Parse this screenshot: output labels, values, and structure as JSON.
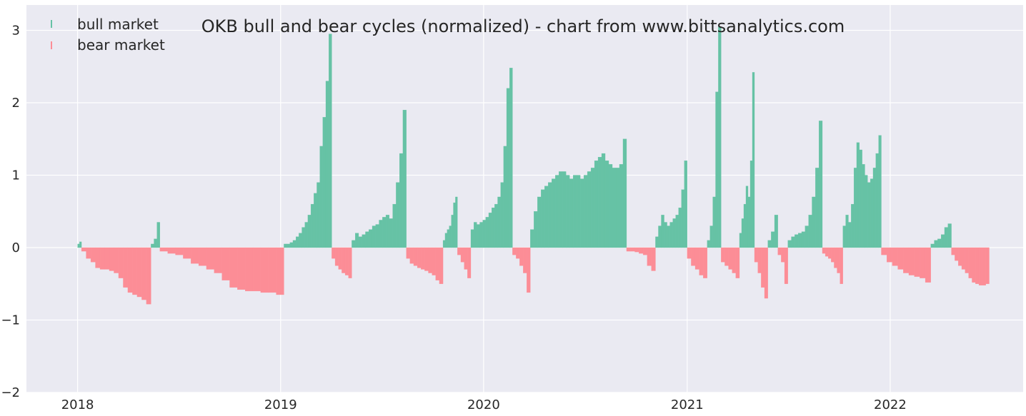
{
  "chart_data": {
    "type": "bar",
    "title": "OKB bull and bear cycles (normalized)  - chart from www.bittsanalytics.com",
    "xlabel": "",
    "ylabel": "",
    "xlim": [
      "2017-10-01",
      "2022-08-28"
    ],
    "ylim": [
      -2,
      3.35
    ],
    "x_ticks": [
      "2018",
      "2019",
      "2020",
      "2021",
      "2022"
    ],
    "y_ticks": [
      "−2",
      "−1",
      "0",
      "1",
      "2",
      "3"
    ],
    "grid": true,
    "legend_position": "top-left",
    "colors": {
      "background": "#EAEAF2",
      "grid": "#FFFFFF",
      "bull": "#66C2A5",
      "bear": "#FC8D96",
      "text": "#262626"
    },
    "series": [
      {
        "name": "bull market",
        "color": "#66C2A5"
      },
      {
        "name": "bear market",
        "color": "#FC8D96"
      }
    ],
    "cycles": [
      {
        "market": "bull",
        "start": "2018-01-01",
        "end": "2018-01-07",
        "values": [
          0.05,
          0.08
        ]
      },
      {
        "market": "bear",
        "start": "2018-01-08",
        "end": "2018-05-12",
        "values": [
          -0.05,
          -0.15,
          -0.2,
          -0.28,
          -0.3,
          -0.3,
          -0.32,
          -0.35,
          -0.42,
          -0.55,
          -0.62,
          -0.65,
          -0.68,
          -0.72,
          -0.78
        ]
      },
      {
        "market": "bull",
        "start": "2018-05-13",
        "end": "2018-05-28",
        "values": [
          0.05,
          0.12,
          0.35
        ]
      },
      {
        "market": "bear",
        "start": "2018-05-29",
        "end": "2019-01-06",
        "values": [
          -0.05,
          -0.08,
          -0.1,
          -0.15,
          -0.22,
          -0.25,
          -0.3,
          -0.35,
          -0.45,
          -0.55,
          -0.58,
          -0.6,
          -0.6,
          -0.62,
          -0.62,
          -0.65
        ]
      },
      {
        "market": "bull",
        "start": "2019-01-07",
        "end": "2019-04-02",
        "values": [
          0.05,
          0.05,
          0.07,
          0.1,
          0.15,
          0.2,
          0.28,
          0.35,
          0.45,
          0.6,
          0.75,
          0.9,
          1.4,
          1.8,
          2.3,
          2.95
        ]
      },
      {
        "market": "bear",
        "start": "2019-04-03",
        "end": "2019-05-08",
        "values": [
          -0.15,
          -0.25,
          -0.3,
          -0.35,
          -0.38,
          -0.42
        ]
      },
      {
        "market": "bull",
        "start": "2019-05-09",
        "end": "2019-08-14",
        "values": [
          0.1,
          0.2,
          0.15,
          0.18,
          0.22,
          0.25,
          0.3,
          0.32,
          0.38,
          0.42,
          0.45,
          0.4,
          0.6,
          0.9,
          1.3,
          1.9
        ]
      },
      {
        "market": "bear",
        "start": "2019-08-15",
        "end": "2019-10-19",
        "values": [
          -0.15,
          -0.22,
          -0.25,
          -0.28,
          -0.3,
          -0.32,
          -0.35,
          -0.38,
          -0.45,
          -0.5
        ]
      },
      {
        "market": "bull",
        "start": "2019-10-20",
        "end": "2019-11-14",
        "values": [
          0.1,
          0.2,
          0.25,
          0.3,
          0.45,
          0.62,
          0.7
        ]
      },
      {
        "market": "bear",
        "start": "2019-11-15",
        "end": "2019-12-08",
        "values": [
          -0.1,
          -0.2,
          -0.3,
          -0.42
        ]
      },
      {
        "market": "bull",
        "start": "2019-12-09",
        "end": "2020-02-21",
        "values": [
          0.25,
          0.35,
          0.32,
          0.35,
          0.38,
          0.42,
          0.48,
          0.55,
          0.6,
          0.7,
          0.9,
          1.4,
          2.2,
          2.48
        ]
      },
      {
        "market": "bear",
        "start": "2020-02-22",
        "end": "2020-03-24",
        "values": [
          -0.1,
          -0.15,
          -0.25,
          -0.35,
          -0.62
        ]
      },
      {
        "market": "bull",
        "start": "2020-03-25",
        "end": "2020-09-13",
        "values": [
          0.25,
          0.5,
          0.7,
          0.8,
          0.85,
          0.9,
          0.95,
          1.0,
          1.05,
          1.05,
          1.0,
          0.95,
          1.0,
          1.0,
          0.95,
          1.0,
          1.05,
          1.1,
          1.2,
          1.25,
          1.3,
          1.2,
          1.15,
          1.1,
          1.1,
          1.15,
          1.5
        ]
      },
      {
        "market": "bear",
        "start": "2020-09-14",
        "end": "2020-11-04",
        "values": [
          -0.05,
          -0.05,
          -0.06,
          -0.08,
          -0.1,
          -0.25,
          -0.32
        ]
      },
      {
        "market": "bull",
        "start": "2020-11-05",
        "end": "2020-12-31",
        "values": [
          0.15,
          0.3,
          0.45,
          0.35,
          0.3,
          0.35,
          0.4,
          0.45,
          0.55,
          0.8,
          1.2
        ]
      },
      {
        "market": "bear",
        "start": "2021-01-01",
        "end": "2021-02-05",
        "values": [
          -0.15,
          -0.25,
          -0.3,
          -0.38,
          -0.42
        ]
      },
      {
        "market": "bull",
        "start": "2021-02-06",
        "end": "2021-03-02",
        "values": [
          0.1,
          0.3,
          0.7,
          2.15,
          3.05
        ]
      },
      {
        "market": "bear",
        "start": "2021-03-03",
        "end": "2021-04-04",
        "values": [
          -0.2,
          -0.25,
          -0.3,
          -0.35,
          -0.42
        ]
      },
      {
        "market": "bull",
        "start": "2021-04-05",
        "end": "2021-05-01",
        "values": [
          0.2,
          0.4,
          0.6,
          0.85,
          0.7,
          1.2,
          2.42
        ]
      },
      {
        "market": "bear",
        "start": "2021-05-02",
        "end": "2021-05-25",
        "values": [
          -0.2,
          -0.35,
          -0.55,
          -0.7
        ]
      },
      {
        "market": "bull",
        "start": "2021-05-26",
        "end": "2021-06-12",
        "values": [
          0.1,
          0.22,
          0.45
        ]
      },
      {
        "market": "bear",
        "start": "2021-06-13",
        "end": "2021-06-30",
        "values": [
          -0.1,
          -0.2,
          -0.5
        ]
      },
      {
        "market": "bull",
        "start": "2021-07-01",
        "end": "2021-08-31",
        "values": [
          0.1,
          0.15,
          0.18,
          0.2,
          0.22,
          0.3,
          0.45,
          0.7,
          1.1,
          1.75
        ]
      },
      {
        "market": "bear",
        "start": "2021-09-01",
        "end": "2021-10-07",
        "values": [
          -0.08,
          -0.12,
          -0.15,
          -0.2,
          -0.28,
          -0.35,
          -0.5
        ]
      },
      {
        "market": "bull",
        "start": "2021-10-08",
        "end": "2021-12-15",
        "values": [
          0.3,
          0.45,
          0.35,
          0.6,
          1.1,
          1.45,
          1.35,
          1.15,
          1.0,
          0.9,
          0.95,
          1.1,
          1.3,
          1.55
        ]
      },
      {
        "market": "bear",
        "start": "2021-12-16",
        "end": "2022-03-14",
        "values": [
          -0.1,
          -0.2,
          -0.25,
          -0.3,
          -0.35,
          -0.38,
          -0.4,
          -0.42,
          -0.48
        ]
      },
      {
        "market": "bull",
        "start": "2022-03-15",
        "end": "2022-04-20",
        "values": [
          0.05,
          0.1,
          0.12,
          0.18,
          0.28,
          0.33
        ]
      },
      {
        "market": "bear",
        "start": "2022-04-21",
        "end": "2022-06-27",
        "values": [
          -0.1,
          -0.18,
          -0.25,
          -0.3,
          -0.35,
          -0.42,
          -0.48,
          -0.5,
          -0.52,
          -0.52,
          -0.5
        ]
      }
    ]
  }
}
